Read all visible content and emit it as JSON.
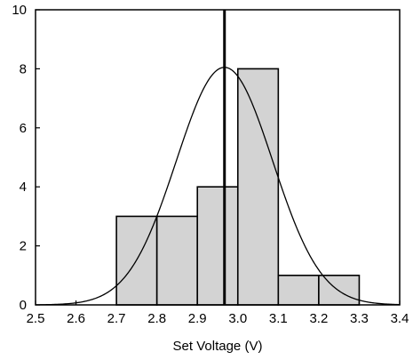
{
  "chart_data": {
    "type": "bar",
    "title": "",
    "xlabel": "Set Voltage (V)",
    "ylabel": "",
    "xlim": [
      2.5,
      3.4
    ],
    "ylim": [
      0,
      10
    ],
    "x_ticks": [
      "2.5",
      "2.6",
      "2.7",
      "2.8",
      "2.9",
      "3.0",
      "3.1",
      "3.2",
      "3.3",
      "3.4"
    ],
    "y_ticks": [
      "0",
      "2",
      "4",
      "6",
      "8",
      "10"
    ],
    "bins": [
      {
        "start": 2.7,
        "end": 2.8,
        "count": 3
      },
      {
        "start": 2.8,
        "end": 2.9,
        "count": 3
      },
      {
        "start": 2.9,
        "end": 3.0,
        "count": 4
      },
      {
        "start": 3.0,
        "end": 3.1,
        "count": 8
      },
      {
        "start": 3.1,
        "end": 3.2,
        "count": 1
      },
      {
        "start": 3.2,
        "end": 3.3,
        "count": 1
      }
    ],
    "normal_fit": {
      "mean": 2.967,
      "sd": 0.119,
      "peak": 8.05
    },
    "mean_line_x": 2.967,
    "grid": false,
    "colors": {
      "bar_fill": "#d3d3d3",
      "bar_stroke": "#000000",
      "curve": "#000000",
      "mean_line": "#000000"
    }
  }
}
